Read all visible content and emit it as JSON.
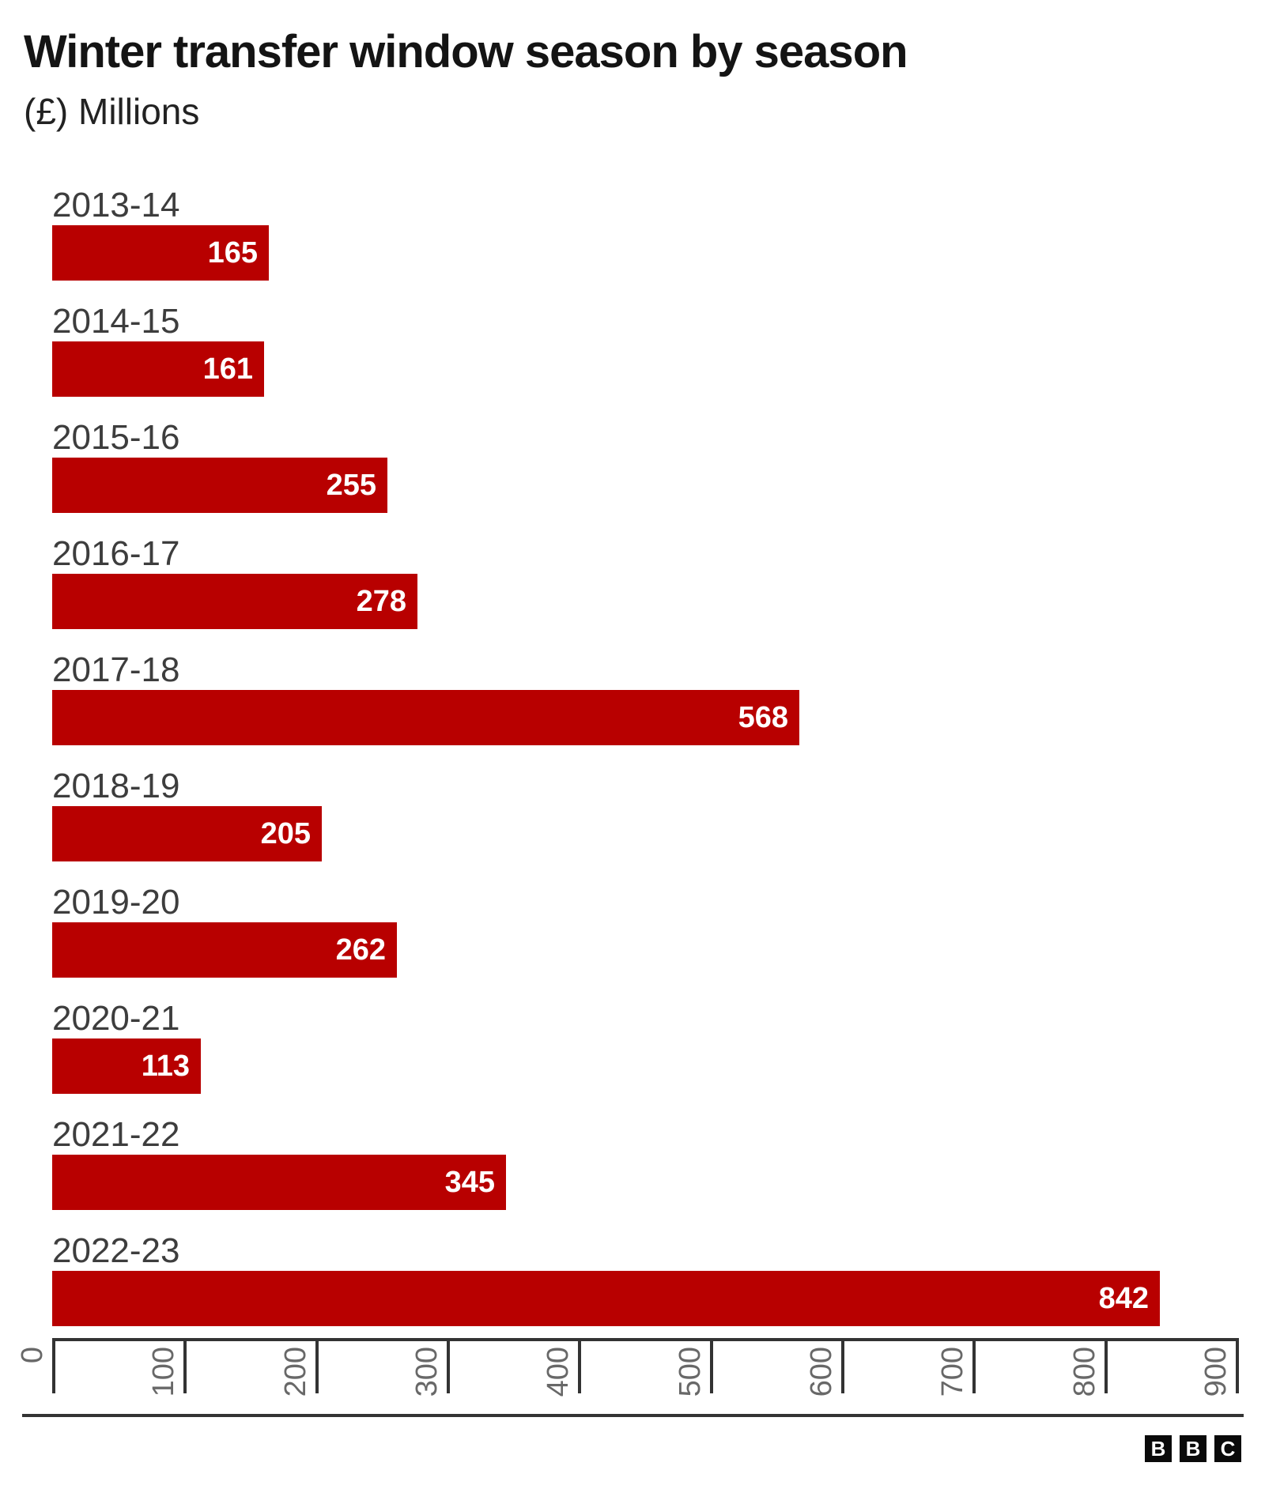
{
  "header": {
    "title": "Winter transfer window season by season",
    "subtitle": "(£) Millions"
  },
  "chart_data": {
    "type": "bar",
    "orientation": "horizontal",
    "title": "Winter transfer window season by season",
    "xlabel": "(£) Millions",
    "ylabel": "",
    "categories": [
      "2013-14",
      "2014-15",
      "2015-16",
      "2016-17",
      "2017-18",
      "2018-19",
      "2019-20",
      "2020-21",
      "2021-22",
      "2022-23"
    ],
    "values": [
      165,
      161,
      255,
      278,
      568,
      205,
      262,
      113,
      345,
      842
    ],
    "xlim": [
      0,
      900
    ],
    "xticks": [
      0,
      100,
      200,
      300,
      400,
      500,
      600,
      700,
      800,
      900
    ],
    "grid": false,
    "legend": "none",
    "value_labels_position": "inside-end",
    "tick_label_rotation_deg": 90
  },
  "colors": {
    "bar": "#b80000",
    "title": "#141414",
    "subtitle": "#222222",
    "category_label": "#3d3d3d",
    "value_label": "#ffffff",
    "tick_label": "#686868",
    "axis_line": "#333333",
    "background": "#ffffff"
  },
  "footer": {
    "logo": [
      "B",
      "B",
      "C"
    ]
  }
}
